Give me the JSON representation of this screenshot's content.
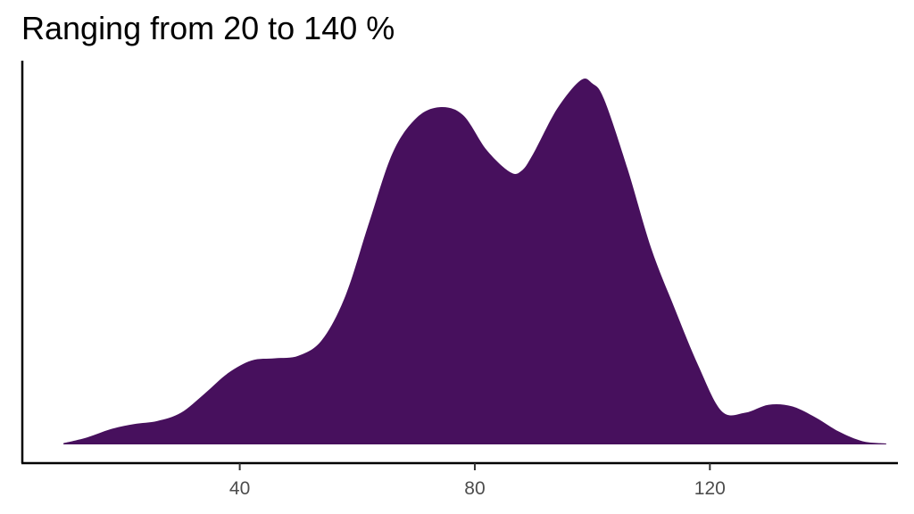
{
  "chart_data": {
    "type": "area",
    "title": "Ranging from 20 to 140 %",
    "xlabel": "",
    "ylabel": "",
    "xlim": [
      3,
      152
    ],
    "ylim": [
      0,
      1.08
    ],
    "x_ticks": [
      40,
      80,
      120
    ],
    "y_ticks": [],
    "grid": false,
    "legend": "none",
    "fill_color": "#47105d",
    "series": [
      {
        "x": [
          10,
          14,
          18,
          22,
          26,
          30,
          34,
          38,
          42,
          46,
          50,
          54,
          58,
          62,
          66,
          70,
          74,
          78,
          82,
          86,
          88,
          90,
          94,
          98,
          100,
          102,
          106,
          110,
          114,
          118,
          122,
          126,
          130,
          134,
          138,
          142,
          146,
          150
        ],
        "y": [
          0.004,
          0.022,
          0.048,
          0.064,
          0.074,
          0.1,
          0.16,
          0.225,
          0.265,
          0.272,
          0.28,
          0.33,
          0.47,
          0.7,
          0.92,
          1.03,
          1.065,
          1.04,
          0.93,
          0.86,
          0.865,
          0.92,
          1.06,
          1.15,
          1.14,
          1.09,
          0.87,
          0.62,
          0.43,
          0.25,
          0.105,
          0.1,
          0.125,
          0.12,
          0.085,
          0.04,
          0.01,
          0.003
        ]
      }
    ]
  }
}
